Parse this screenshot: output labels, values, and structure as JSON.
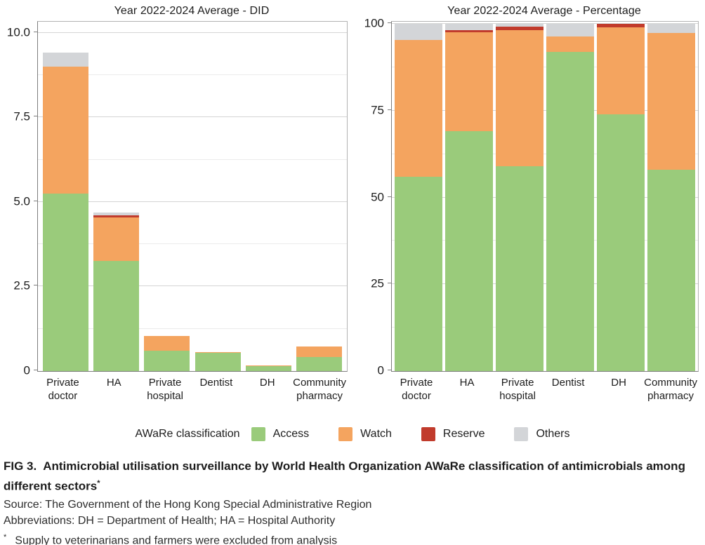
{
  "legend": {
    "title": "AWaRe classification",
    "items": [
      {
        "label": "Access",
        "color": "#9ACB7B"
      },
      {
        "label": "Watch",
        "color": "#F4A45F"
      },
      {
        "label": "Reserve",
        "color": "#C13B2C"
      },
      {
        "label": "Others",
        "color": "#D3D5D8"
      }
    ]
  },
  "chart_data": [
    {
      "type": "bar",
      "stacked": true,
      "title": "Year 2022-2024 Average - DID",
      "categories": [
        "Private doctor",
        "HA",
        "Private hospital",
        "Dentist",
        "DH",
        "Community pharmacy"
      ],
      "series": [
        {
          "name": "Access",
          "color": "#9ACB7B",
          "values": [
            5.25,
            3.25,
            0.6,
            0.55,
            0.14,
            0.42
          ]
        },
        {
          "name": "Watch",
          "color": "#F4A45F",
          "values": [
            3.75,
            1.3,
            0.43,
            0.02,
            0.02,
            0.31
          ]
        },
        {
          "name": "Reserve",
          "color": "#C13B2C",
          "values": [
            0,
            0.05,
            0,
            0,
            0,
            0
          ]
        },
        {
          "name": "Others",
          "color": "#D3D5D8",
          "values": [
            0.42,
            0.08,
            0,
            0,
            0,
            0
          ]
        }
      ],
      "totals": [
        9.42,
        4.68,
        1.03,
        0.57,
        0.16,
        0.73
      ],
      "ylabel": "DID",
      "ylim": [
        0,
        10.33
      ],
      "yticks": [
        0,
        2.5,
        5,
        7.5,
        10
      ],
      "ytick_labels": [
        "0",
        "2.5",
        "5.0",
        "7.5",
        "10.0"
      ],
      "grid": "major horizontal with minor at half-step",
      "legend_position": "shared-bottom"
    },
    {
      "type": "bar",
      "stacked": true,
      "title": "Year 2022-2024 Average - Percentage",
      "categories": [
        "Private doctor",
        "HA",
        "Private hospital",
        "Dentist",
        "DH",
        "Community pharmacy"
      ],
      "series": [
        {
          "name": "Access",
          "color": "#9ACB7B",
          "values": [
            56,
            69,
            59,
            92,
            74,
            58
          ]
        },
        {
          "name": "Watch",
          "color": "#F4A45F",
          "values": [
            39.4,
            28.5,
            39.2,
            4.4,
            25.0,
            39.3
          ]
        },
        {
          "name": "Reserve",
          "color": "#C13B2C",
          "values": [
            0,
            0.6,
            1.0,
            0,
            1.0,
            0
          ]
        },
        {
          "name": "Others",
          "color": "#D3D5D8",
          "values": [
            4.6,
            1.9,
            0.8,
            3.6,
            0,
            2.7
          ]
        }
      ],
      "totals": [
        100,
        100,
        100,
        100,
        100,
        100
      ],
      "ylabel": "Percentage",
      "ylim": [
        0,
        100.6
      ],
      "yticks": [
        0,
        25,
        50,
        75,
        100
      ],
      "ytick_labels": [
        "0",
        "25",
        "50",
        "75",
        "100"
      ],
      "grid": "major horizontal with minor at half-step",
      "legend_position": "shared-bottom"
    }
  ],
  "caption": {
    "tag": "FIG 3.",
    "title": "Antimicrobial utilisation surveillance by World Health Organization AWaRe classification of antimicrobials among different sectors",
    "title_footnote_marker": "*",
    "source": "Source: The Government of the Hong Kong Special Administrative Region",
    "abbreviations": "Abbreviations: DH = Department of Health; HA = Hospital Authority",
    "footnote_marker": "*",
    "footnote": "Supply to veterinarians and farmers were excluded from analysis"
  }
}
